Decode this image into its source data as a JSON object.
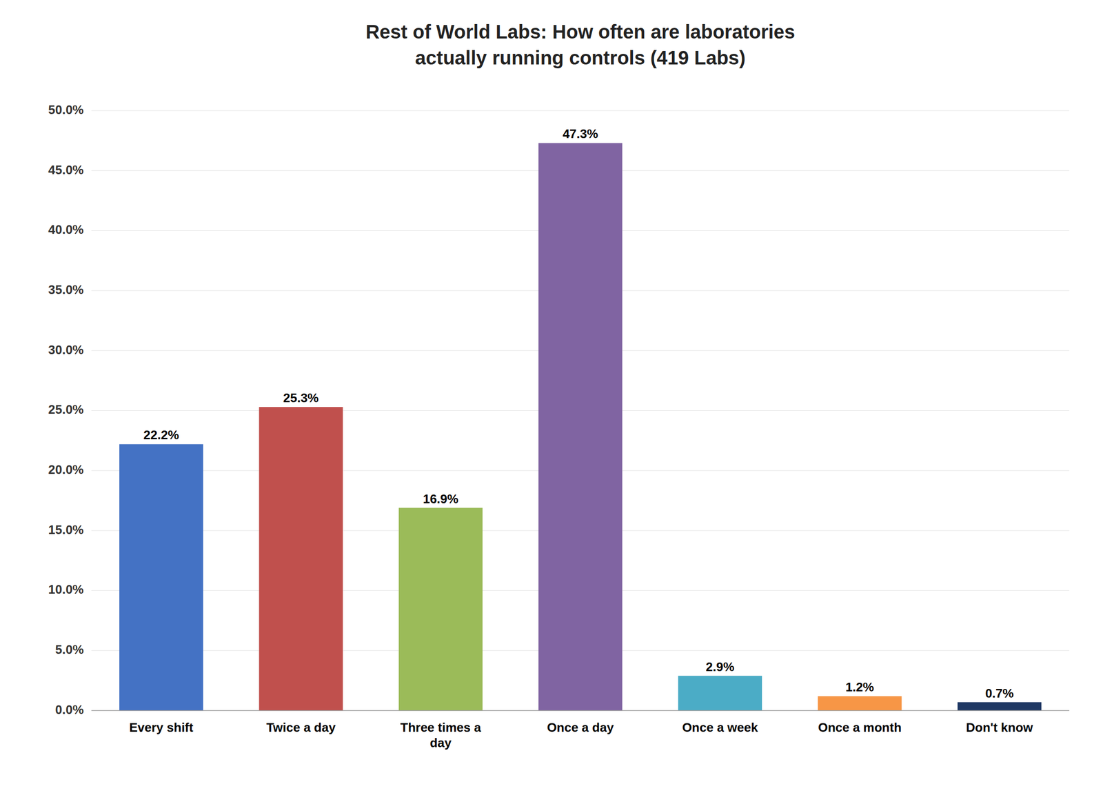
{
  "chart_data": {
    "type": "bar",
    "title": "Rest of World Labs: How often are laboratories\nactually running controls (419 Labs)",
    "categories": [
      "Every shift",
      "Twice a day",
      "Three times a\nday",
      "Once a day",
      "Once a week",
      "Once a month",
      "Don't know"
    ],
    "values": [
      22.2,
      25.3,
      16.9,
      47.3,
      2.9,
      1.2,
      0.7
    ],
    "value_labels": [
      "22.2%",
      "25.3%",
      "16.9%",
      "47.3%",
      "2.9%",
      "1.2%",
      "0.7%"
    ],
    "data_labels": true,
    "colors": [
      "#4472c4",
      "#c0504d",
      "#9bbb59",
      "#8064a2",
      "#4bacc6",
      "#f79646",
      "#1f3864"
    ],
    "ylim": [
      0,
      50
    ],
    "yticks": [
      {
        "value": 0,
        "label": "0.0%"
      },
      {
        "value": 5,
        "label": "5.0%"
      },
      {
        "value": 10,
        "label": "10.0%"
      },
      {
        "value": 15,
        "label": "15.0%"
      },
      {
        "value": 20,
        "label": "20.0%"
      },
      {
        "value": 25,
        "label": "25.0%"
      },
      {
        "value": 30,
        "label": "30.0%"
      },
      {
        "value": 35,
        "label": "35.0%"
      },
      {
        "value": 40,
        "label": "40.0%"
      },
      {
        "value": 45,
        "label": "45.0%"
      },
      {
        "value": 50,
        "label": "50.0%"
      }
    ],
    "grid": true
  }
}
